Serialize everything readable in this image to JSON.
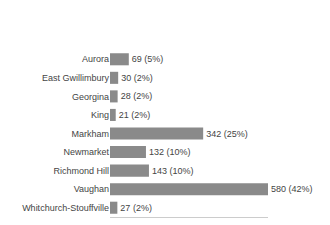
{
  "chart_data": {
    "type": "bar",
    "orientation": "horizontal",
    "categories": [
      "Aurora",
      "East Gwillimbury",
      "Georgina",
      "King",
      "Markham",
      "Newmarket",
      "Richmond Hill",
      "Vaughan",
      "Whitchurch-Stouffville"
    ],
    "values": [
      69,
      30,
      28,
      21,
      342,
      132,
      143,
      580,
      27
    ],
    "value_labels": [
      "69 (5%)",
      "30 (2%)",
      "28 (2%)",
      "21 (2%)",
      "342 (25%)",
      "132 (10%)",
      "143 (10%)",
      "580 (42%)",
      "27 (2%)"
    ],
    "data_labels": true,
    "color": "#8a8a8a",
    "xlim": [
      0,
      580
    ],
    "grid": false,
    "tick_labels": "y"
  }
}
